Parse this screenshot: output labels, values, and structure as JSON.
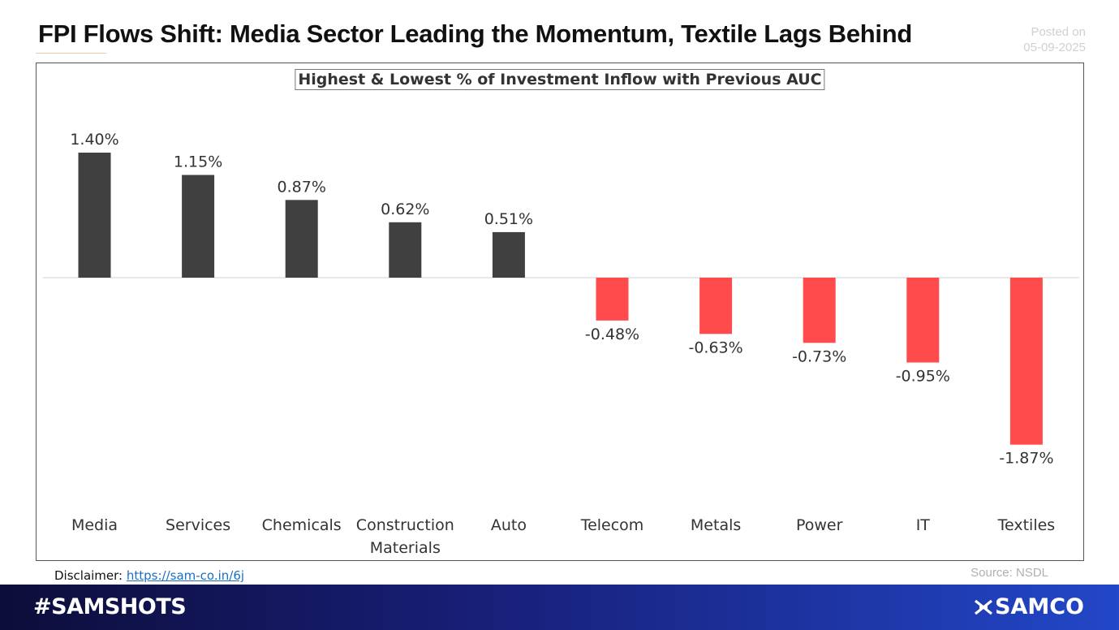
{
  "header": {
    "title": "FPI Flows Shift: Media Sector Leading the Momentum, Textile Lags Behind",
    "posted_label": "Posted on",
    "posted_date": "05-09-2025"
  },
  "chart_data": {
    "type": "bar",
    "title": "Highest & Lowest % of Investment Inflow with Previous AUC",
    "categories": [
      "Media",
      "Services",
      "Chemicals",
      "Construction Materials",
      "Auto",
      "Telecom",
      "Metals",
      "Power",
      "IT",
      "Textiles"
    ],
    "values": [
      1.4,
      1.15,
      0.87,
      0.62,
      0.51,
      -0.48,
      -0.63,
      -0.73,
      -0.95,
      -1.87
    ],
    "data_labels": [
      "1.40%",
      "1.15%",
      "0.87%",
      "0.62%",
      "0.51%",
      "-0.48%",
      "-0.63%",
      "-0.73%",
      "-0.95%",
      "-1.87%"
    ],
    "xlabel": "",
    "ylabel": "",
    "grid": false,
    "colors": {
      "positive": "#404040",
      "negative": "#ff4b4b"
    }
  },
  "footer": {
    "disclaimer_label": "Disclaimer: ",
    "disclaimer_link": "https://sam-co.in/6j",
    "source": "Source: NSDL",
    "hashtag": "#SAMSHOTS",
    "brand": "SAMCO"
  }
}
